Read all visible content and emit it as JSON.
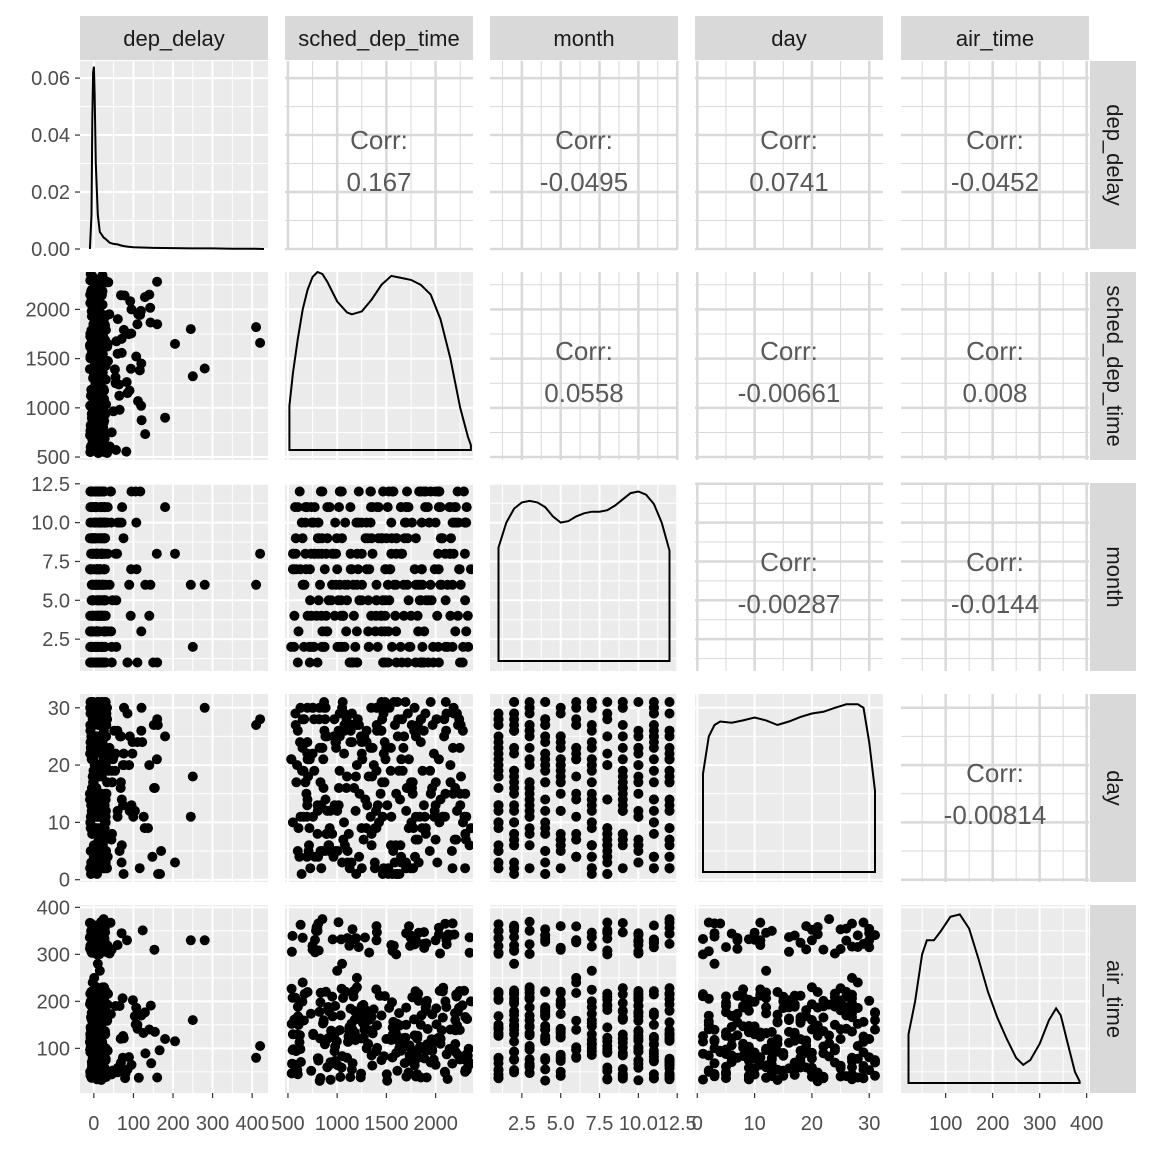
{
  "chart_data": {
    "type": "scatter",
    "variables": [
      "dep_delay",
      "sched_dep_time",
      "month",
      "day",
      "air_time"
    ],
    "panels": {
      "dep_delay": {
        "lim": [
          -35,
          440
        ],
        "ticks": [
          0,
          100,
          200,
          300,
          400
        ],
        "tick_labels": [
          "0",
          "100",
          "200",
          "300",
          "400"
        ],
        "density_lim": [
          0,
          0.066
        ],
        "density_ticks": [
          0.0,
          0.02,
          0.04,
          0.06
        ],
        "density_tick_labels": [
          "0.00",
          "0.02",
          "0.04",
          "0.06"
        ],
        "density_curve": [
          [
            -10,
            0.0
          ],
          [
            -6,
            0.012
          ],
          [
            -4,
            0.045
          ],
          [
            -2,
            0.062
          ],
          [
            0,
            0.064
          ],
          [
            2,
            0.055
          ],
          [
            5,
            0.03
          ],
          [
            10,
            0.012
          ],
          [
            15,
            0.006
          ],
          [
            20,
            0.005
          ],
          [
            25,
            0.004
          ],
          [
            30,
            0.0035
          ],
          [
            40,
            0.0022
          ],
          [
            50,
            0.0018
          ],
          [
            60,
            0.0016
          ],
          [
            70,
            0.0012
          ],
          [
            80,
            0.0009
          ],
          [
            100,
            0.0006
          ],
          [
            150,
            0.0004
          ],
          [
            200,
            0.0003
          ],
          [
            250,
            0.0002
          ],
          [
            300,
            0.0002
          ],
          [
            350,
            0.0001
          ],
          [
            400,
            0.0001
          ],
          [
            430,
            0.0
          ]
        ]
      },
      "sched_dep_time": {
        "lim": [
          470,
          2380
        ],
        "ticks": [
          500,
          1000,
          1500,
          2000
        ],
        "tick_labels": [
          "500",
          "1000",
          "1500",
          "2000"
        ],
        "density_curve": [
          [
            515,
            1020
          ],
          [
            550,
            1350
          ],
          [
            600,
            1700
          ],
          [
            650,
            2000
          ],
          [
            700,
            2200
          ],
          [
            750,
            2330
          ],
          [
            800,
            2380
          ],
          [
            850,
            2360
          ],
          [
            900,
            2280
          ],
          [
            1000,
            2080
          ],
          [
            1100,
            1970
          ],
          [
            1150,
            1950
          ],
          [
            1250,
            1980
          ],
          [
            1350,
            2100
          ],
          [
            1450,
            2250
          ],
          [
            1550,
            2340
          ],
          [
            1650,
            2320
          ],
          [
            1750,
            2300
          ],
          [
            1850,
            2250
          ],
          [
            1950,
            2150
          ],
          [
            2050,
            1900
          ],
          [
            2150,
            1500
          ],
          [
            2250,
            1000
          ],
          [
            2330,
            700
          ],
          [
            2359,
            620
          ]
        ]
      },
      "month": {
        "lim": [
          0.45,
          12.55
        ],
        "ticks": [
          2.5,
          5.0,
          7.5,
          10.0,
          12.5
        ],
        "tick_labels": [
          "2.5",
          "5.0",
          "7.5",
          "10.0",
          "12.5"
        ],
        "density_curve": [
          [
            1,
            8.4
          ],
          [
            1.5,
            10.0
          ],
          [
            2,
            10.9
          ],
          [
            2.5,
            11.3
          ],
          [
            3,
            11.4
          ],
          [
            3.5,
            11.3
          ],
          [
            4,
            11.0
          ],
          [
            4.5,
            10.4
          ],
          [
            5,
            10.0
          ],
          [
            5.5,
            10.1
          ],
          [
            6,
            10.4
          ],
          [
            6.5,
            10.6
          ],
          [
            7,
            10.7
          ],
          [
            7.5,
            10.7
          ],
          [
            8,
            10.8
          ],
          [
            8.5,
            11.1
          ],
          [
            9,
            11.5
          ],
          [
            9.5,
            11.9
          ],
          [
            10,
            12.0
          ],
          [
            10.5,
            11.8
          ],
          [
            11,
            11.2
          ],
          [
            11.5,
            10.0
          ],
          [
            12,
            8.2
          ]
        ]
      },
      "day": {
        "lim": [
          -0.4,
          32.4
        ],
        "ticks": [
          0,
          10,
          20,
          30
        ],
        "tick_labels": [
          "0",
          "10",
          "20",
          "30"
        ],
        "density_curve": [
          [
            1,
            18.5
          ],
          [
            2,
            25.0
          ],
          [
            3,
            27.0
          ],
          [
            4,
            27.6
          ],
          [
            6,
            27.4
          ],
          [
            8,
            27.8
          ],
          [
            10,
            28.3
          ],
          [
            12,
            27.8
          ],
          [
            14,
            27.0
          ],
          [
            16,
            27.6
          ],
          [
            18,
            28.4
          ],
          [
            20,
            29.0
          ],
          [
            22,
            29.3
          ],
          [
            24,
            30.0
          ],
          [
            26,
            30.6
          ],
          [
            28,
            30.6
          ],
          [
            29,
            30.0
          ],
          [
            30,
            24.0
          ],
          [
            31,
            15.5
          ]
        ]
      },
      "air_time": {
        "lim": [
          5,
          405
        ],
        "ticks": [
          100,
          200,
          300,
          400
        ],
        "tick_labels": [
          "100",
          "200",
          "300",
          "400"
        ],
        "density_curve": [
          [
            21,
            130
          ],
          [
            35,
            200
          ],
          [
            50,
            300
          ],
          [
            60,
            330
          ],
          [
            75,
            330
          ],
          [
            90,
            350
          ],
          [
            110,
            380
          ],
          [
            130,
            385
          ],
          [
            150,
            355
          ],
          [
            170,
            290
          ],
          [
            190,
            220
          ],
          [
            210,
            165
          ],
          [
            230,
            120
          ],
          [
            250,
            80
          ],
          [
            265,
            65
          ],
          [
            280,
            75
          ],
          [
            300,
            110
          ],
          [
            320,
            160
          ],
          [
            335,
            185
          ],
          [
            345,
            170
          ],
          [
            360,
            110
          ],
          [
            375,
            50
          ],
          [
            385,
            30
          ]
        ]
      }
    },
    "correlations": [
      {
        "row": "dep_delay",
        "col": "sched_dep_time",
        "label": "Corr:",
        "value": "0.167"
      },
      {
        "row": "dep_delay",
        "col": "month",
        "label": "Corr:",
        "value": "-0.0495"
      },
      {
        "row": "dep_delay",
        "col": "day",
        "label": "Corr:",
        "value": "0.0741"
      },
      {
        "row": "dep_delay",
        "col": "air_time",
        "label": "Corr:",
        "value": "-0.0452"
      },
      {
        "row": "sched_dep_time",
        "col": "month",
        "label": "Corr:",
        "value": "0.0558"
      },
      {
        "row": "sched_dep_time",
        "col": "day",
        "label": "Corr:",
        "value": "-0.00661"
      },
      {
        "row": "sched_dep_time",
        "col": "air_time",
        "label": "Corr:",
        "value": "0.008"
      },
      {
        "row": "month",
        "col": "day",
        "label": "Corr:",
        "value": "-0.00287"
      },
      {
        "row": "month",
        "col": "air_time",
        "label": "Corr:",
        "value": "-0.0144"
      },
      {
        "row": "day",
        "col": "air_time",
        "label": "Corr:",
        "value": "-0.00814"
      }
    ],
    "points": {
      "dep_delay": [
        -8,
        -5,
        -3,
        -2,
        0,
        2,
        5,
        -6,
        -4,
        1,
        8,
        12,
        -7,
        -1,
        3,
        20,
        35,
        -9,
        -5,
        55,
        -3,
        10,
        60,
        -2,
        25,
        85,
        0,
        -6,
        140,
        120,
        -4,
        15,
        45,
        70,
        160,
        205,
        245,
        280,
        410,
        420,
        250,
        180,
        -3,
        4,
        30,
        -8,
        7,
        95,
        110,
        65
      ],
      "sched_dep_time": [
        600,
        900,
        1100,
        1300,
        1500,
        1700,
        1900,
        2100,
        700,
        1200,
        1600,
        2000,
        800,
        1400,
        1800,
        1950,
        1650,
        550,
        2200,
        1250,
        650,
        1050,
        1550,
        1750,
        850,
        1150,
        1350,
        2050,
        2150,
        1450,
        950,
        1000,
        750,
        1700,
        1850,
        1650,
        1800,
        1400,
        1820,
        1660,
        1320,
        900,
        2300,
        1600,
        1450,
        2359,
        1200,
        2000,
        1850,
        980
      ],
      "month": [
        1,
        3,
        5,
        7,
        9,
        11,
        12,
        2,
        4,
        6,
        8,
        10,
        1,
        5,
        9,
        12,
        11,
        7,
        3,
        8,
        6,
        2,
        10,
        4,
        12,
        1,
        9,
        11,
        4,
        3,
        8,
        7,
        2,
        10,
        1,
        8,
        6,
        6,
        6,
        8,
        2,
        11,
        5,
        9,
        4,
        7,
        3,
        12,
        1,
        10
      ],
      "day": [
        5,
        12,
        18,
        24,
        30,
        2,
        9,
        15,
        21,
        27,
        1,
        7,
        13,
        19,
        25,
        31,
        4,
        10,
        16,
        22,
        28,
        3,
        11,
        17,
        23,
        29,
        6,
        14,
        20,
        26,
        8,
        12,
        22,
        3,
        28,
        3,
        11,
        30,
        27,
        28,
        18,
        25,
        2,
        15,
        31,
        9,
        20,
        13,
        24,
        5
      ],
      "air_time": [
        45,
        60,
        80,
        100,
        120,
        150,
        180,
        200,
        220,
        250,
        300,
        330,
        350,
        360,
        40,
        70,
        95,
        130,
        160,
        190,
        240,
        280,
        320,
        340,
        375,
        55,
        85,
        110,
        140,
        170,
        210,
        265,
        310,
        345,
        38,
        115,
        330,
        330,
        80,
        105,
        160,
        120,
        50,
        90,
        75,
        200,
        230,
        65,
        150,
        190
      ]
    }
  }
}
